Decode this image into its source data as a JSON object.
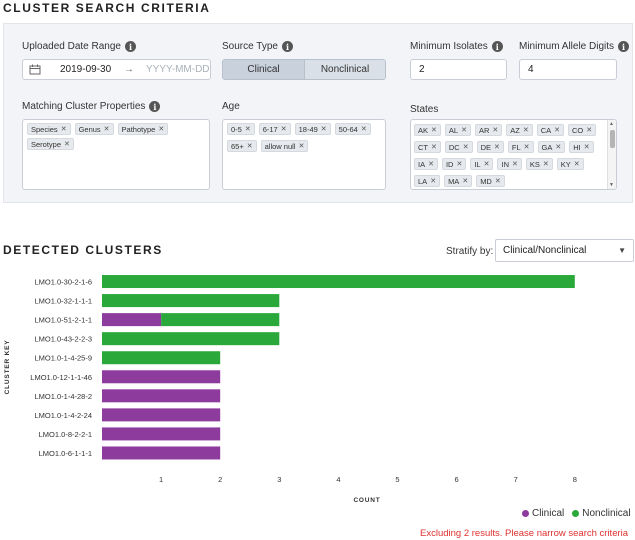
{
  "criteria": {
    "title": "CLUSTER SEARCH CRITERIA",
    "uploaded_date_range": {
      "label": "Uploaded Date Range",
      "from": "2019-09-30",
      "to_placeholder": "YYYY-MM-DD",
      "arrow": "→"
    },
    "source_type": {
      "label": "Source Type",
      "options": [
        "Clinical",
        "Nonclinical"
      ],
      "selected": "Clinical"
    },
    "minimum_isolates": {
      "label": "Minimum Isolates",
      "value": "2"
    },
    "minimum_allele_digits": {
      "label": "Minimum Allele Digits",
      "value": "4"
    },
    "matching_cluster_properties": {
      "label": "Matching Cluster Properties",
      "tags": [
        "Species",
        "Genus",
        "Pathotype",
        "Serotype"
      ]
    },
    "age": {
      "label": "Age",
      "tags": [
        "0-5",
        "6-17",
        "18-49",
        "50-64",
        "65+",
        "allow null"
      ]
    },
    "states": {
      "label": "States",
      "tags": [
        "AK",
        "AL",
        "AR",
        "AZ",
        "CA",
        "CO",
        "CT",
        "DC",
        "DE",
        "FL",
        "GA",
        "HI",
        "IA",
        "ID",
        "IL",
        "IN",
        "KS",
        "KY",
        "LA",
        "MA",
        "MD"
      ]
    },
    "info_glyph": "i",
    "remove_glyph": "✕"
  },
  "clusters": {
    "title": "DETECTED CLUSTERS",
    "stratify_label": "Stratify by:",
    "stratify_value": "Clinical/Nonclinical",
    "legend": {
      "clinical": "Clinical",
      "nonclinical": "Nonclinical"
    },
    "warning": "Excluding 2 results. Please narrow search criteria"
  },
  "colors": {
    "clinical": "#8e3b9e",
    "nonclinical": "#2aa93a"
  },
  "chart_data": {
    "type": "bar",
    "orientation": "horizontal",
    "stacked": true,
    "categories": [
      "LMO1.0-30-2-1-6",
      "LMO1.0-32-1-1-1",
      "LMO1.0-51-2-1-1",
      "LMO1.0-43-2-2-3",
      "LMO1.0-1-4-25-9",
      "LMO1.0-12-1-1-46",
      "LMO1.0-1-4-28-2",
      "LMO1.0-1-4-2-24",
      "LMO1.0-8-2-2-1",
      "LMO1.0-6-1-1-1"
    ],
    "series": [
      {
        "name": "Clinical",
        "values": [
          0,
          0,
          1,
          0,
          0,
          2,
          2,
          2,
          2,
          2
        ]
      },
      {
        "name": "Nonclinical",
        "values": [
          8,
          3,
          2,
          3,
          2,
          0,
          0,
          0,
          0,
          0
        ]
      }
    ],
    "xlabel": "COUNT",
    "ylabel": "CLUSTER KEY",
    "xticks": [
      1,
      2,
      3,
      4,
      5,
      6,
      7,
      8
    ],
    "xlim": [
      0,
      8.9
    ],
    "grid": false,
    "legend_position": "bottom-right"
  }
}
